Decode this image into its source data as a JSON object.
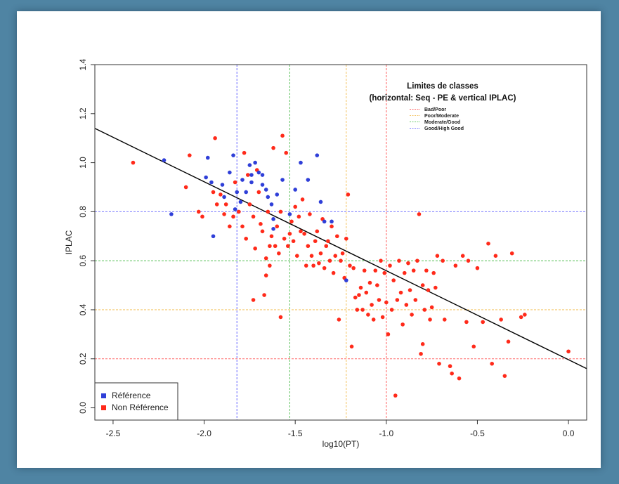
{
  "chart_data": {
    "type": "scatter",
    "title": "",
    "xlabel": "log10(PT)",
    "ylabel": "IPLAC",
    "xlim": [
      -2.6,
      0.1
    ],
    "ylim": [
      -0.05,
      1.4
    ],
    "xticks": [
      -2.5,
      -2.0,
      -1.5,
      -1.0,
      -0.5,
      0.0
    ],
    "xtick_labels": [
      "-2.5",
      "-2.0",
      "-1.5",
      "-1.0",
      "-0.5",
      "0.0"
    ],
    "yticks": [
      0.0,
      0.2,
      0.4,
      0.6,
      0.8,
      1.0,
      1.2,
      1.4
    ],
    "ytick_labels": [
      "0.0",
      "0.2",
      "0.4",
      "0.6",
      "0.8",
      "1.0",
      "1.2",
      "1.4"
    ],
    "grid": false,
    "class_legend": {
      "title_line1": "Limites de classes",
      "title_line2": "(horizontal: Seq - PE  & vertical IPLAC)",
      "placement": "top-right"
    },
    "class_limits": [
      {
        "name": "Bad/Poor",
        "color": "#ff6a6a",
        "x": -1.0,
        "y": 0.2
      },
      {
        "name": "Poor/Moderate",
        "color": "#f4c66a",
        "x": -1.22,
        "y": 0.4
      },
      {
        "name": "Moderate/Good",
        "color": "#6cc86c",
        "x": -1.53,
        "y": 0.6
      },
      {
        "name": "Good/High Good",
        "color": "#7878ff",
        "x": -1.82,
        "y": 0.8
      }
    ],
    "regression_line": {
      "color": "#000000",
      "from": [
        -2.6,
        1.14
      ],
      "to": [
        0.1,
        0.16
      ]
    },
    "point_legend_placement": "bottom-left",
    "series": [
      {
        "name": "Référence",
        "color": "#2f3fd8",
        "points": [
          [
            -2.22,
            1.01
          ],
          [
            -2.18,
            0.79
          ],
          [
            -1.98,
            1.02
          ],
          [
            -1.99,
            0.94
          ],
          [
            -1.96,
            0.92
          ],
          [
            -1.95,
            0.7
          ],
          [
            -1.9,
            0.91
          ],
          [
            -1.86,
            0.96
          ],
          [
            -1.84,
            1.03
          ],
          [
            -1.82,
            0.88
          ],
          [
            -1.8,
            0.84
          ],
          [
            -1.79,
            0.93
          ],
          [
            -1.77,
            0.88
          ],
          [
            -1.75,
            0.99
          ],
          [
            -1.74,
            0.95
          ],
          [
            -1.72,
            1.0
          ],
          [
            -1.7,
            0.96
          ],
          [
            -1.68,
            0.91
          ],
          [
            -1.66,
            0.89
          ],
          [
            -1.65,
            0.86
          ],
          [
            -1.63,
            0.83
          ],
          [
            -1.62,
            0.77
          ],
          [
            -1.6,
            0.87
          ],
          [
            -1.57,
            0.93
          ],
          [
            -1.53,
            0.79
          ],
          [
            -1.5,
            0.89
          ],
          [
            -1.47,
            1.0
          ],
          [
            -1.43,
            0.93
          ],
          [
            -1.38,
            1.03
          ],
          [
            -1.36,
            0.84
          ],
          [
            -1.34,
            0.76
          ],
          [
            -1.3,
            0.76
          ],
          [
            -1.22,
            0.52
          ],
          [
            -1.89,
            0.86
          ],
          [
            -1.83,
            0.81
          ],
          [
            -1.74,
            0.92
          ],
          [
            -1.68,
            0.95
          ],
          [
            -1.62,
            0.73
          ]
        ]
      },
      {
        "name": "Non Référence",
        "color": "#ff2a1a",
        "points": [
          [
            -2.39,
            1.0
          ],
          [
            -2.08,
            1.03
          ],
          [
            -2.03,
            0.8
          ],
          [
            -2.01,
            0.78
          ],
          [
            -1.94,
            1.1
          ],
          [
            -1.93,
            0.83
          ],
          [
            -1.91,
            0.87
          ],
          [
            -1.89,
            0.79
          ],
          [
            -1.88,
            0.83
          ],
          [
            -1.86,
            0.74
          ],
          [
            -1.84,
            0.78
          ],
          [
            -1.83,
            0.92
          ],
          [
            -1.81,
            0.8
          ],
          [
            -1.79,
            0.74
          ],
          [
            -1.78,
            1.04
          ],
          [
            -1.77,
            0.69
          ],
          [
            -1.76,
            0.95
          ],
          [
            -1.75,
            0.83
          ],
          [
            -1.73,
            0.78
          ],
          [
            -1.72,
            0.65
          ],
          [
            -1.71,
            0.97
          ],
          [
            -1.7,
            0.88
          ],
          [
            -1.69,
            0.75
          ],
          [
            -1.68,
            0.72
          ],
          [
            -1.67,
            0.46
          ],
          [
            -1.66,
            0.61
          ],
          [
            -1.65,
            0.8
          ],
          [
            -1.64,
            0.66
          ],
          [
            -1.63,
            0.7
          ],
          [
            -1.62,
            1.06
          ],
          [
            -1.61,
            0.66
          ],
          [
            -1.6,
            0.74
          ],
          [
            -1.59,
            0.63
          ],
          [
            -1.58,
            0.8
          ],
          [
            -1.57,
            1.11
          ],
          [
            -1.56,
            0.69
          ],
          [
            -1.55,
            1.04
          ],
          [
            -1.54,
            0.66
          ],
          [
            -1.53,
            0.71
          ],
          [
            -1.52,
            0.76
          ],
          [
            -1.51,
            0.68
          ],
          [
            -1.5,
            0.82
          ],
          [
            -1.49,
            0.62
          ],
          [
            -1.48,
            0.78
          ],
          [
            -1.47,
            0.72
          ],
          [
            -1.46,
            0.85
          ],
          [
            -1.45,
            0.71
          ],
          [
            -1.44,
            0.58
          ],
          [
            -1.43,
            0.66
          ],
          [
            -1.42,
            0.79
          ],
          [
            -1.41,
            0.62
          ],
          [
            -1.4,
            0.58
          ],
          [
            -1.39,
            0.68
          ],
          [
            -1.38,
            0.72
          ],
          [
            -1.37,
            0.59
          ],
          [
            -1.36,
            0.63
          ],
          [
            -1.35,
            0.77
          ],
          [
            -1.34,
            0.57
          ],
          [
            -1.33,
            0.66
          ],
          [
            -1.32,
            0.68
          ],
          [
            -1.31,
            0.6
          ],
          [
            -1.3,
            0.74
          ],
          [
            -1.29,
            0.55
          ],
          [
            -1.28,
            0.62
          ],
          [
            -1.27,
            0.7
          ],
          [
            -1.26,
            0.36
          ],
          [
            -1.25,
            0.6
          ],
          [
            -1.24,
            0.63
          ],
          [
            -1.23,
            0.53
          ],
          [
            -1.22,
            0.69
          ],
          [
            -1.21,
            0.87
          ],
          [
            -1.2,
            0.58
          ],
          [
            -1.19,
            0.25
          ],
          [
            -1.18,
            0.57
          ],
          [
            -1.17,
            0.45
          ],
          [
            -1.16,
            0.4
          ],
          [
            -1.15,
            0.46
          ],
          [
            -1.14,
            0.49
          ],
          [
            -1.13,
            0.4
          ],
          [
            -1.12,
            0.56
          ],
          [
            -1.11,
            0.47
          ],
          [
            -1.1,
            0.38
          ],
          [
            -1.09,
            0.51
          ],
          [
            -1.08,
            0.42
          ],
          [
            -1.07,
            0.36
          ],
          [
            -1.06,
            0.56
          ],
          [
            -1.05,
            0.5
          ],
          [
            -1.04,
            0.44
          ],
          [
            -1.03,
            0.6
          ],
          [
            -1.02,
            0.37
          ],
          [
            -1.01,
            0.55
          ],
          [
            -1.0,
            0.43
          ],
          [
            -0.99,
            0.3
          ],
          [
            -0.98,
            0.58
          ],
          [
            -0.97,
            0.4
          ],
          [
            -0.96,
            0.52
          ],
          [
            -0.95,
            0.05
          ],
          [
            -0.94,
            0.44
          ],
          [
            -0.93,
            0.6
          ],
          [
            -0.92,
            0.47
          ],
          [
            -0.91,
            0.34
          ],
          [
            -0.9,
            0.55
          ],
          [
            -0.89,
            0.42
          ],
          [
            -0.88,
            0.59
          ],
          [
            -0.87,
            0.48
          ],
          [
            -0.86,
            0.38
          ],
          [
            -0.85,
            0.56
          ],
          [
            -0.84,
            0.44
          ],
          [
            -0.83,
            0.6
          ],
          [
            -0.82,
            0.79
          ],
          [
            -0.81,
            0.22
          ],
          [
            -0.8,
            0.5
          ],
          [
            -0.79,
            0.4
          ],
          [
            -0.78,
            0.56
          ],
          [
            -0.77,
            0.48
          ],
          [
            -0.76,
            0.36
          ],
          [
            -0.75,
            0.41
          ],
          [
            -0.74,
            0.55
          ],
          [
            -0.73,
            0.49
          ],
          [
            -0.71,
            0.18
          ],
          [
            -0.69,
            0.6
          ],
          [
            -0.68,
            0.36
          ],
          [
            -0.65,
            0.17
          ],
          [
            -0.64,
            0.14
          ],
          [
            -0.62,
            0.58
          ],
          [
            -0.6,
            0.12
          ],
          [
            -0.58,
            0.62
          ],
          [
            -0.55,
            0.6
          ],
          [
            -0.52,
            0.25
          ],
          [
            -0.5,
            0.57
          ],
          [
            -0.47,
            0.35
          ],
          [
            -0.44,
            0.67
          ],
          [
            -0.42,
            0.18
          ],
          [
            -0.4,
            0.62
          ],
          [
            -0.37,
            0.36
          ],
          [
            -0.35,
            0.13
          ],
          [
            -0.33,
            0.27
          ],
          [
            -0.31,
            0.63
          ],
          [
            -0.26,
            0.37
          ],
          [
            -0.24,
            0.38
          ],
          [
            -0.8,
            0.26
          ],
          [
            -0.72,
            0.62
          ],
          [
            -0.56,
            0.35
          ],
          [
            0.0,
            0.23
          ],
          [
            -1.73,
            0.44
          ],
          [
            -1.64,
            0.58
          ],
          [
            -1.58,
            0.37
          ],
          [
            -1.66,
            0.54
          ],
          [
            -1.95,
            0.88
          ],
          [
            -2.1,
            0.9
          ]
        ]
      }
    ]
  }
}
